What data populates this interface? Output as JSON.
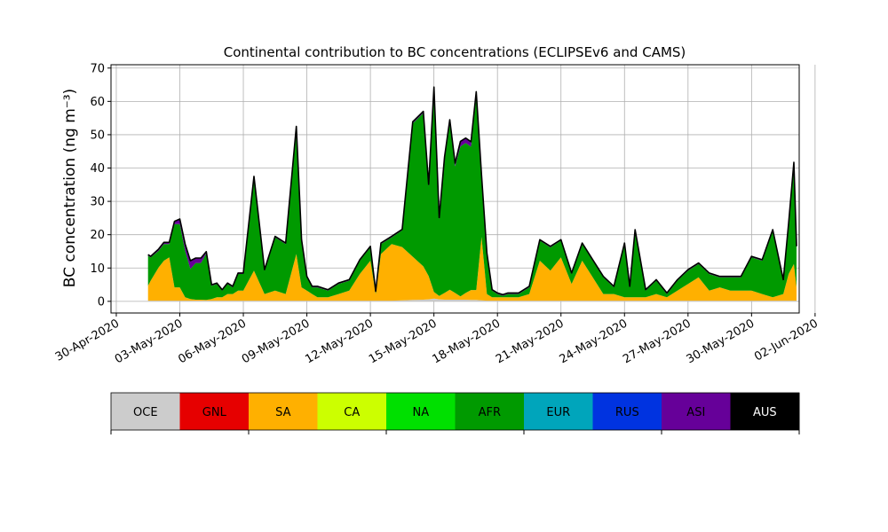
{
  "chart_data": {
    "type": "area",
    "stacked": true,
    "title": "Continental contribution to BC concentrations (ECLIPSEv6 and CAMS)",
    "ylabel": "BC concentration (ng m⁻³)",
    "xlabel": "",
    "xlim": [
      "2020-04-29T18:00",
      "2020-06-01T06:00"
    ],
    "ylim": [
      -3.5,
      71
    ],
    "yticks": [
      0,
      10,
      20,
      30,
      40,
      50,
      60,
      70
    ],
    "xticks": [
      "2020-04-30",
      "2020-05-03",
      "2020-05-06",
      "2020-05-09",
      "2020-05-12",
      "2020-05-15",
      "2020-05-18",
      "2020-05-21",
      "2020-05-24",
      "2020-05-27",
      "2020-05-30",
      "2020-06-02"
    ],
    "xtick_labels": [
      "30-Apr-2020",
      "03-May-2020",
      "06-May-2020",
      "09-May-2020",
      "12-May-2020",
      "15-May-2020",
      "18-May-2020",
      "21-May-2020",
      "24-May-2020",
      "27-May-2020",
      "30-May-2020",
      "02-Jun-2020"
    ],
    "grid": true,
    "total_line_color": "#000000",
    "x": [
      "2020-05-01T12:00",
      "2020-05-01T15:00",
      "2020-05-02T00:00",
      "2020-05-02T06:00",
      "2020-05-02T12:00",
      "2020-05-02T18:00",
      "2020-05-03T00:00",
      "2020-05-03T06:00",
      "2020-05-03T12:00",
      "2020-05-03T18:00",
      "2020-05-04T00:00",
      "2020-05-04T06:00",
      "2020-05-04T12:00",
      "2020-05-04T18:00",
      "2020-05-05T00:00",
      "2020-05-05T06:00",
      "2020-05-05T12:00",
      "2020-05-05T18:00",
      "2020-05-06T00:00",
      "2020-05-06T12:00",
      "2020-05-07T00:00",
      "2020-05-07T12:00",
      "2020-05-08T00:00",
      "2020-05-08T12:00",
      "2020-05-08T18:00",
      "2020-05-09T00:00",
      "2020-05-09T06:00",
      "2020-05-09T12:00",
      "2020-05-10T00:00",
      "2020-05-10T12:00",
      "2020-05-11T00:00",
      "2020-05-11T12:00",
      "2020-05-12T00:00",
      "2020-05-12T06:00",
      "2020-05-12T12:00",
      "2020-05-13T00:00",
      "2020-05-13T12:00",
      "2020-05-14T00:00",
      "2020-05-14T12:00",
      "2020-05-14T18:00",
      "2020-05-15T00:00",
      "2020-05-15T06:00",
      "2020-05-15T12:00",
      "2020-05-15T18:00",
      "2020-05-16T00:00",
      "2020-05-16T06:00",
      "2020-05-16T12:00",
      "2020-05-16T18:00",
      "2020-05-17T00:00",
      "2020-05-17T06:00",
      "2020-05-17T12:00",
      "2020-05-17T18:00",
      "2020-05-18T00:00",
      "2020-05-18T06:00",
      "2020-05-18T12:00",
      "2020-05-19T00:00",
      "2020-05-19T12:00",
      "2020-05-20T00:00",
      "2020-05-20T12:00",
      "2020-05-21T00:00",
      "2020-05-21T12:00",
      "2020-05-22T00:00",
      "2020-05-22T12:00",
      "2020-05-23T00:00",
      "2020-05-23T12:00",
      "2020-05-24T00:00",
      "2020-05-24T06:00",
      "2020-05-24T12:00",
      "2020-05-25T00:00",
      "2020-05-25T12:00",
      "2020-05-26T00:00",
      "2020-05-26T12:00",
      "2020-05-27T00:00",
      "2020-05-27T12:00",
      "2020-05-28T00:00",
      "2020-05-28T12:00",
      "2020-05-29T00:00",
      "2020-05-29T12:00",
      "2020-05-30T00:00",
      "2020-05-30T12:00",
      "2020-05-31T00:00",
      "2020-05-31T12:00",
      "2020-05-31T18:00",
      "2020-06-01T00:00",
      "2020-06-01T03:00"
    ],
    "series": [
      {
        "name": "OCE",
        "color": "#cccccc",
        "values": [
          0.2,
          0.2,
          0.2,
          0.2,
          0.2,
          0.2,
          0.2,
          0.2,
          0.2,
          0.2,
          0.2,
          0.2,
          0.2,
          0.2,
          0.2,
          0.2,
          0.2,
          0.2,
          0.2,
          0.2,
          0.2,
          0.2,
          0.2,
          0.2,
          0.2,
          0.2,
          0.2,
          0.2,
          0.2,
          0.2,
          0.2,
          0.2,
          0.2,
          0.2,
          0.2,
          0.2,
          0.3,
          0.4,
          0.5,
          0.6,
          0.8,
          0.6,
          0.5,
          0.5,
          0.5,
          0.5,
          0.5,
          0.4,
          0.4,
          0.3,
          0.2,
          0.2,
          0.2,
          0.2,
          0.2,
          0.2,
          0.2,
          0.2,
          0.2,
          0.2,
          0.2,
          0.2,
          0.2,
          0.2,
          0.2,
          0.2,
          0.2,
          0.2,
          0.2,
          0.2,
          0.2,
          0.2,
          0.2,
          0.2,
          0.2,
          0.2,
          0.2,
          0.2,
          0.2,
          0.2,
          0.2,
          0.2,
          0.2,
          0.2,
          0.2
        ]
      },
      {
        "name": "GNL",
        "color": "#e60000",
        "values": [
          0,
          0,
          0,
          0,
          0,
          0,
          0,
          0,
          0,
          0,
          0,
          0,
          0,
          0,
          0,
          0,
          0,
          0,
          0,
          0,
          0,
          0,
          0,
          0,
          0,
          0,
          0,
          0,
          0,
          0,
          0,
          0,
          0,
          0,
          0,
          0,
          0,
          0,
          0,
          0,
          0,
          0,
          0,
          0,
          0,
          0,
          0,
          0,
          0,
          0,
          0,
          0,
          0,
          0,
          0,
          0,
          0,
          0,
          0,
          0,
          0,
          0,
          0,
          0,
          0,
          0,
          0,
          0,
          0,
          0,
          0,
          0,
          0,
          0,
          0,
          0,
          0,
          0,
          0,
          0,
          0,
          0,
          0,
          0,
          0
        ]
      },
      {
        "name": "SA",
        "color": "#ffb000",
        "values": [
          4.5,
          6,
          10,
          12,
          13,
          4,
          4,
          1,
          0.5,
          0.3,
          0.3,
          0.2,
          0.5,
          1,
          1,
          2,
          2,
          3,
          3,
          9,
          2,
          3,
          2,
          14,
          4,
          3,
          2,
          1,
          1,
          2,
          3,
          8,
          12,
          2,
          14,
          17,
          16,
          13,
          10,
          7,
          2,
          1,
          2,
          3,
          2,
          1,
          2,
          3,
          3,
          19,
          2,
          1,
          1,
          1,
          1,
          1,
          2,
          12,
          9,
          13,
          5,
          12,
          7,
          2,
          2,
          1,
          1,
          1,
          1,
          2,
          1,
          3,
          5,
          7,
          3,
          4,
          3,
          3,
          3,
          2,
          1,
          2,
          8,
          11,
          4
        ]
      },
      {
        "name": "CA",
        "color": "#ccff00",
        "values": [
          0,
          0,
          0,
          0,
          0,
          0,
          0,
          0,
          0,
          0,
          0,
          0,
          0,
          0,
          0,
          0,
          0,
          0,
          0,
          0,
          0,
          0,
          0,
          0,
          0,
          0,
          0,
          0,
          0,
          0,
          0,
          0,
          0,
          0,
          0,
          0,
          0,
          0,
          0,
          0,
          0,
          0,
          0,
          0,
          0,
          0,
          0,
          0,
          0,
          0,
          0,
          0,
          0,
          0,
          0,
          0,
          0,
          0,
          0,
          0,
          0,
          0,
          0,
          0,
          0,
          0,
          0,
          0,
          0,
          0,
          0,
          0,
          0,
          0,
          0,
          0,
          0,
          0,
          0,
          0,
          0,
          0,
          0,
          0,
          0
        ]
      },
      {
        "name": "NA",
        "color": "#00e000",
        "values": [
          0,
          0,
          0,
          0,
          0,
          0,
          0,
          0,
          0,
          0,
          0,
          0,
          0,
          0,
          0,
          0,
          0,
          0,
          0,
          0,
          0,
          0,
          0,
          0,
          0,
          0,
          0,
          0,
          0,
          0,
          0,
          0,
          0,
          0,
          0,
          0,
          0,
          0,
          0,
          0,
          0,
          0,
          0,
          0,
          0,
          0,
          0,
          0,
          0,
          0,
          0,
          0,
          0,
          0,
          0,
          0,
          0,
          0,
          0,
          0,
          0,
          0,
          0,
          0,
          0,
          0,
          0,
          0,
          0,
          0,
          0,
          0,
          0,
          0,
          0,
          0,
          0,
          0,
          0,
          0,
          0,
          0,
          0,
          0,
          0
        ]
      },
      {
        "name": "AFR",
        "color": "#009a00",
        "values": [
          9,
          7,
          5,
          5,
          4,
          19,
          19,
          14,
          9,
          11,
          11,
          14,
          4,
          4,
          2,
          3,
          2,
          5,
          5,
          28,
          7,
          16,
          15,
          38,
          14,
          4,
          2,
          3,
          2,
          3,
          3,
          4,
          4,
          0.5,
          3,
          2,
          5,
          40,
          46,
          27,
          60,
          23,
          40,
          50,
          38,
          45,
          45,
          43,
          58,
          18,
          12,
          2,
          1,
          0.5,
          1,
          1,
          2,
          6,
          7,
          5,
          3,
          5,
          5,
          5,
          2,
          16,
          3,
          20,
          2,
          4,
          1,
          3,
          4,
          4,
          5,
          3,
          4,
          4,
          10,
          10,
          20,
          4,
          15,
          30,
          12
        ]
      },
      {
        "name": "EUR",
        "color": "#00a5bb",
        "values": [
          0,
          0,
          0,
          0,
          0,
          0,
          0,
          0,
          0,
          0,
          0,
          0,
          0,
          0,
          0,
          0,
          0,
          0,
          0,
          0,
          0,
          0,
          0,
          0,
          0,
          0,
          0,
          0,
          0,
          0,
          0,
          0,
          0,
          0,
          0,
          0,
          0,
          0,
          0,
          0,
          0,
          0,
          0,
          0,
          0,
          0,
          0,
          0,
          0,
          0,
          0,
          0,
          0,
          0,
          0,
          0,
          0,
          0,
          0,
          0,
          0,
          0,
          0,
          0,
          0,
          0,
          0,
          0,
          0,
          0,
          0,
          0,
          0,
          0,
          0,
          0,
          0,
          0,
          0,
          0,
          0,
          0,
          0,
          0,
          0
        ]
      },
      {
        "name": "RUS",
        "color": "#0033e0",
        "values": [
          0,
          0,
          0,
          0,
          0,
          0,
          0,
          0,
          0,
          0,
          0,
          0,
          0,
          0,
          0,
          0,
          0,
          0,
          0,
          0,
          0,
          0,
          0,
          0,
          0,
          0,
          0,
          0,
          0,
          0,
          0,
          0,
          0,
          0,
          0,
          0,
          0,
          0,
          0,
          0,
          0,
          0,
          0,
          0,
          0,
          0,
          0,
          0,
          0,
          0,
          0,
          0,
          0,
          0,
          0,
          0,
          0,
          0,
          0,
          0,
          0,
          0,
          0,
          0,
          0,
          0,
          0,
          0,
          0,
          0,
          0,
          0,
          0,
          0,
          0,
          0,
          0,
          0,
          0,
          0,
          0,
          0,
          0,
          0,
          0
        ]
      },
      {
        "name": "ASI",
        "color": "#660099",
        "values": [
          0.3,
          0.3,
          0.5,
          0.5,
          0.5,
          0.8,
          1.5,
          2,
          2.5,
          1.5,
          1.5,
          0.5,
          0.3,
          0.3,
          0.3,
          0.3,
          0.3,
          0.3,
          0.3,
          0.3,
          0.3,
          0.3,
          0.3,
          0.3,
          0.3,
          0.3,
          0.3,
          0.3,
          0.3,
          0.3,
          0.3,
          0.3,
          0.3,
          0.3,
          0.3,
          0.3,
          0.3,
          0.5,
          0.5,
          0.5,
          1.5,
          0.5,
          0.8,
          1,
          1,
          1.5,
          1.5,
          1.5,
          1.5,
          0.5,
          0.3,
          0.3,
          0.3,
          0.3,
          0.3,
          0.3,
          0.3,
          0.3,
          0.3,
          0.3,
          0.3,
          0.3,
          0.3,
          0.3,
          0.3,
          0.3,
          0.3,
          0.3,
          0.3,
          0.3,
          0.3,
          0.3,
          0.3,
          0.3,
          0.3,
          0.3,
          0.3,
          0.3,
          0.3,
          0.3,
          0.3,
          0.3,
          0.3,
          0.5,
          0.3
        ]
      },
      {
        "name": "AUS",
        "color": "#000000",
        "values": [
          0,
          0,
          0,
          0,
          0,
          0,
          0,
          0,
          0,
          0,
          0,
          0,
          0,
          0,
          0,
          0,
          0,
          0,
          0,
          0,
          0,
          0,
          0,
          0,
          0,
          0,
          0,
          0,
          0,
          0,
          0,
          0,
          0,
          0,
          0,
          0,
          0,
          0,
          0,
          0,
          0,
          0,
          0,
          0,
          0,
          0,
          0,
          0,
          0,
          0,
          0,
          0,
          0,
          0,
          0,
          0,
          0,
          0,
          0,
          0,
          0,
          0,
          0,
          0,
          0,
          0,
          0,
          0,
          0,
          0,
          0,
          0,
          0,
          0,
          0,
          0,
          0,
          0,
          0,
          0,
          0,
          0,
          0,
          0,
          0
        ]
      }
    ],
    "legend": {
      "placement": "bottom",
      "entries": [
        {
          "label": "OCE",
          "color": "#cccccc",
          "text_color": "#000000"
        },
        {
          "label": "GNL",
          "color": "#e60000",
          "text_color": "#000000"
        },
        {
          "label": "SA",
          "color": "#ffb000",
          "text_color": "#000000"
        },
        {
          "label": "CA",
          "color": "#ccff00",
          "text_color": "#000000"
        },
        {
          "label": "NA",
          "color": "#00e000",
          "text_color": "#000000"
        },
        {
          "label": "AFR",
          "color": "#009a00",
          "text_color": "#000000"
        },
        {
          "label": "EUR",
          "color": "#00a5bb",
          "text_color": "#000000"
        },
        {
          "label": "RUS",
          "color": "#0033e0",
          "text_color": "#000000"
        },
        {
          "label": "ASI",
          "color": "#660099",
          "text_color": "#000000"
        },
        {
          "label": "AUS",
          "color": "#000000",
          "text_color": "#ffffff"
        }
      ]
    }
  }
}
